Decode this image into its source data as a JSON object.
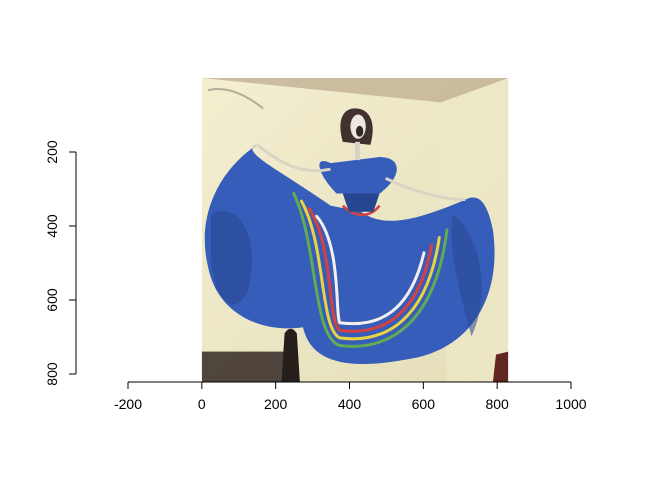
{
  "chart_data": {
    "type": "image",
    "title": "",
    "xlabel": "",
    "ylabel": "",
    "xlim": [
      -200,
      1000
    ],
    "ylim": [
      800,
      200
    ],
    "x_ticks": [
      -200,
      0,
      200,
      400,
      600,
      800,
      1000
    ],
    "y_ticks": [
      200,
      400,
      600,
      800
    ],
    "x_tick_labels": [
      "-200",
      "0",
      "200",
      "400",
      "600",
      "800",
      "1000"
    ],
    "y_tick_labels": [
      "200",
      "400",
      "600",
      "800"
    ],
    "image_extent": {
      "x": [
        0,
        830
      ],
      "y": [
        -10,
        830
      ]
    },
    "image_subject": "papier-mache catrina skeleton figure in a flowing blue dress with yellow, red, white and green stripes",
    "colors": {
      "dress": "#2f57b8",
      "dress_dark": "#1f3f8e",
      "wall": "#efe9c6",
      "stripe_yellow": "#e8d23a",
      "stripe_red": "#d23a3a",
      "stripe_white": "#f3f0ee",
      "stripe_green": "#5aa84c"
    }
  }
}
